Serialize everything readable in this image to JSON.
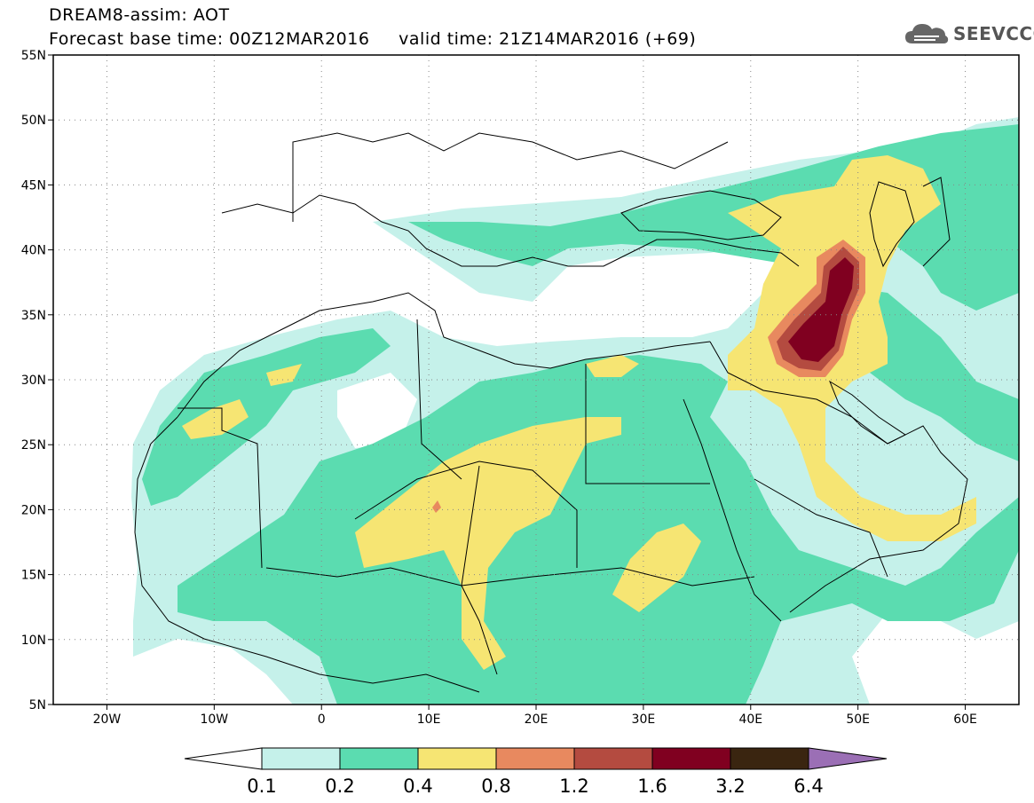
{
  "header": {
    "title": "DREAM8-assim: AOT",
    "base_time_label": "Forecast base time: 00Z12MAR2016",
    "valid_time_label": "valid time: 21Z14MAR2016 (+69)"
  },
  "logo": {
    "icon": "cloud-logo-icon",
    "text": "SEEVCCC"
  },
  "axes": {
    "lat_labels": [
      "55N",
      "50N",
      "45N",
      "40N",
      "35N",
      "30N",
      "25N",
      "20N",
      "15N",
      "10N",
      "5N"
    ],
    "lat_values": [
      55,
      50,
      45,
      40,
      35,
      30,
      25,
      20,
      15,
      10,
      5
    ],
    "lon_labels": [
      "20W",
      "10W",
      "0",
      "10E",
      "20E",
      "30E",
      "40E",
      "50E",
      "60E"
    ],
    "lon_values": [
      -20,
      -10,
      0,
      10,
      20,
      30,
      40,
      50,
      60
    ],
    "lon_range": [
      -25,
      65
    ],
    "lat_range": [
      5,
      55
    ],
    "grid": "dotted"
  },
  "colorbar": {
    "levels": [
      "0.1",
      "0.2",
      "0.4",
      "0.8",
      "1.2",
      "1.6",
      "3.2",
      "6.4"
    ],
    "colors": [
      "#c5f1ea",
      "#5bdcb0",
      "#f6e573",
      "#e8895f",
      "#b44b40",
      "#800020",
      "#3a2510",
      "#9b6fb5"
    ],
    "under_color": "#ffffff"
  }
}
